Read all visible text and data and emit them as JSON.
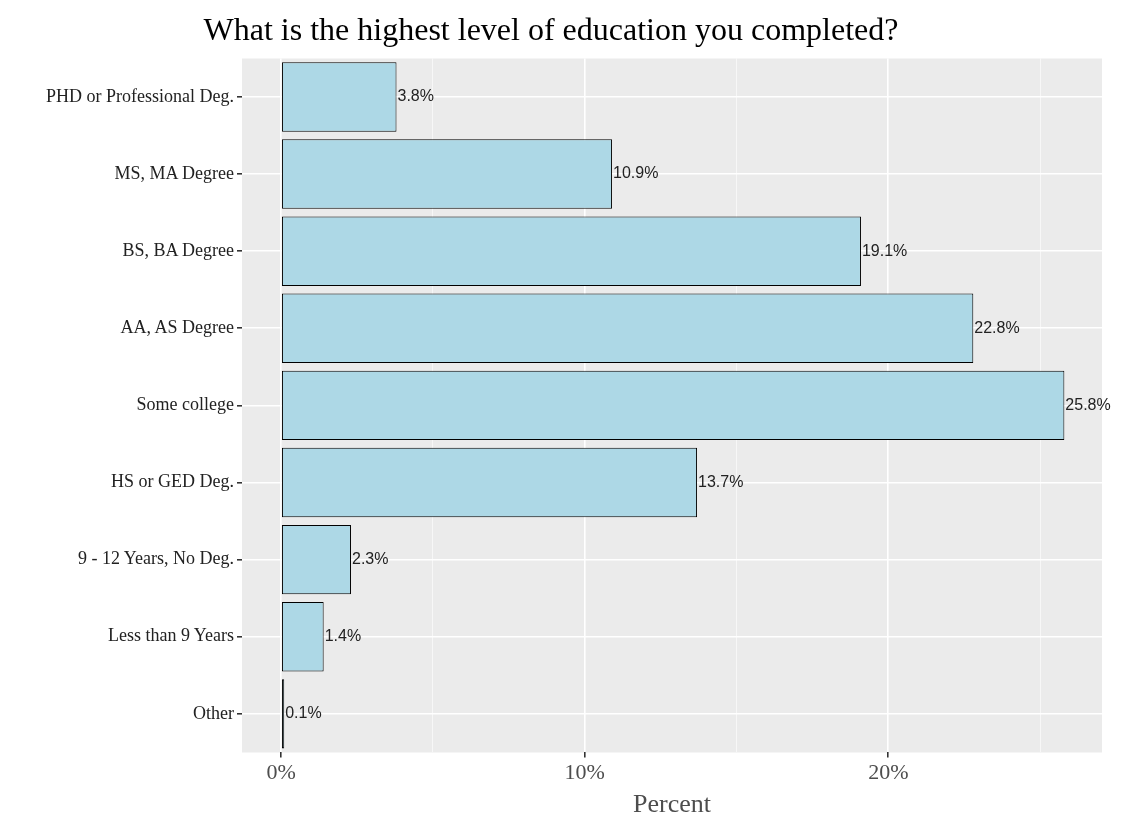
{
  "chart_data": {
    "type": "bar",
    "orientation": "horizontal",
    "title": "What is the highest level of education you completed?",
    "xlabel": "Percent",
    "categories": [
      "PHD or Professional Deg.",
      "MS, MA Degree",
      "BS, BA Degree",
      "AA, AS Degree",
      "Some college",
      "HS or GED Deg.",
      "9 - 12 Years, No Deg.",
      "Less than 9 Years",
      "Other"
    ],
    "values": [
      3.8,
      10.9,
      19.1,
      22.8,
      25.8,
      13.7,
      2.3,
      1.4,
      0.1
    ],
    "value_labels": [
      "3.8%",
      "10.9%",
      "19.1%",
      "22.8%",
      "25.8%",
      "13.7%",
      "2.3%",
      "1.4%",
      "0.1%"
    ],
    "color": "#add8e6",
    "xlim": [
      -1.29,
      27.04
    ],
    "xticks": [
      {
        "value": 0,
        "label": "0%"
      },
      {
        "value": 5,
        "label": null
      },
      {
        "value": 10,
        "label": "10%"
      },
      {
        "value": 15,
        "label": null
      },
      {
        "value": 20,
        "label": "20%"
      },
      {
        "value": 25,
        "label": null
      }
    ],
    "grid": true,
    "legend": false
  }
}
